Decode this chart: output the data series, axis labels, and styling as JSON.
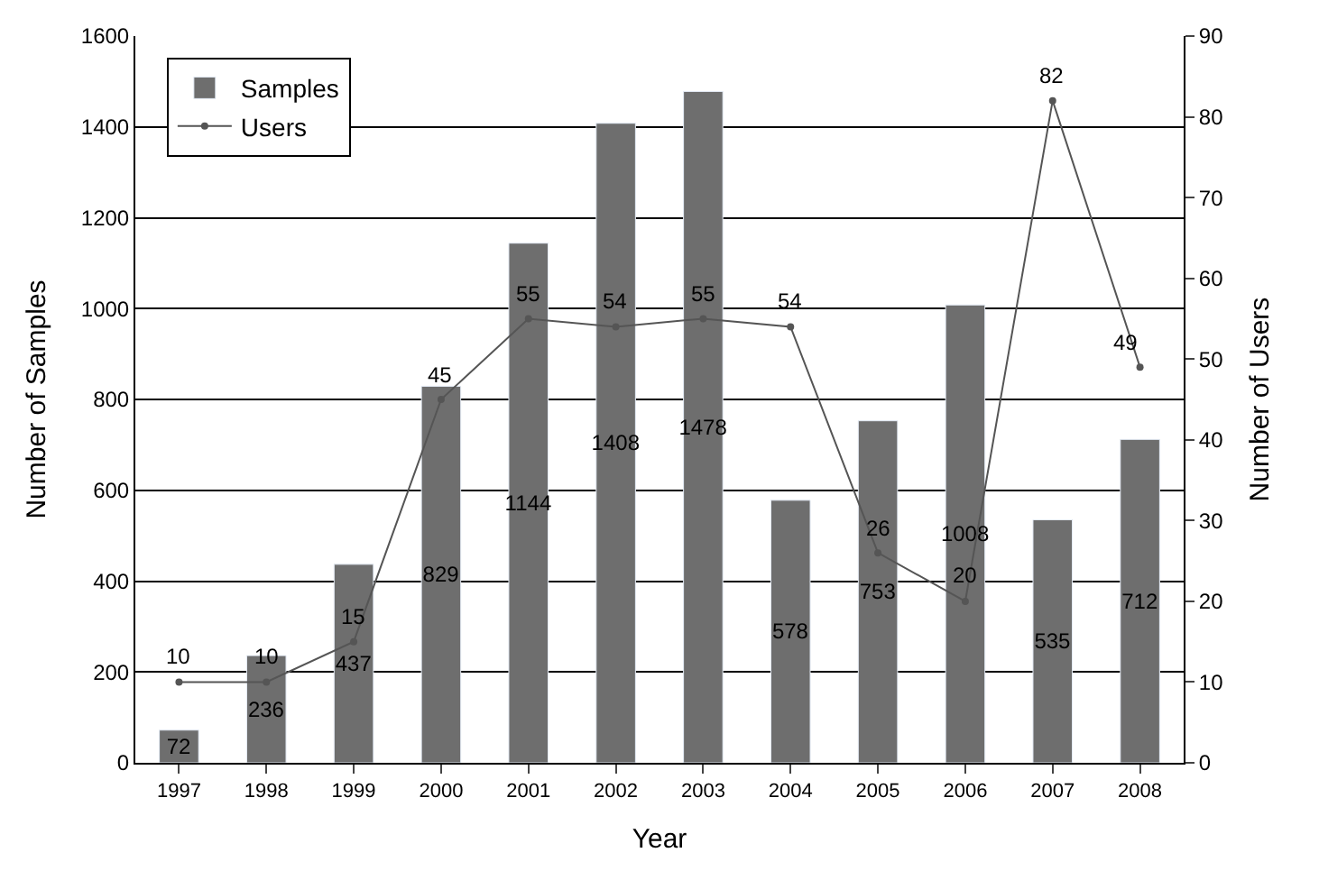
{
  "chart_data": {
    "type": "bar",
    "xlabel": "Year",
    "ylabel": "Number of Samples",
    "y2label": "Number of Users",
    "categories": [
      "1997",
      "1998",
      "1999",
      "2000",
      "2001",
      "2002",
      "2003",
      "2004",
      "2005",
      "2006",
      "2007",
      "2008"
    ],
    "series": [
      {
        "name": "Samples",
        "color": "#6e6e6e",
        "values": [
          72,
          236,
          437,
          829,
          1144,
          1408,
          1478,
          578,
          753,
          1008,
          535,
          712
        ]
      },
      {
        "name": "Users",
        "type": "line",
        "axis": "y2",
        "color": "#555555",
        "marker": "circle",
        "values": [
          10,
          10,
          15,
          45,
          55,
          54,
          55,
          54,
          26,
          20,
          82,
          49
        ]
      }
    ],
    "ylim": [
      0,
      1600
    ],
    "yticks": [
      0,
      200,
      400,
      600,
      800,
      1000,
      1200,
      1400,
      1600
    ],
    "y2lim": [
      0,
      90
    ],
    "y2ticks": [
      0,
      10,
      20,
      30,
      40,
      50,
      60,
      70,
      80,
      90
    ],
    "data_labels": true,
    "grid": "y",
    "legend": "top left"
  }
}
